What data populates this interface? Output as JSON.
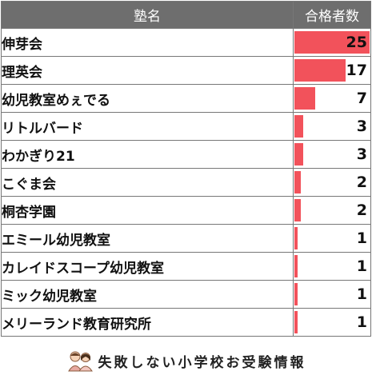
{
  "chart_data": {
    "type": "table",
    "headers": [
      "塾名",
      "合格者数"
    ],
    "categories": [
      "伸芽会",
      "理英会",
      "幼児教室めぇでる",
      "リトルバード",
      "わかぎり21",
      "こぐま会",
      "桐杏学園",
      "エミール幼児教室",
      "カレイドスコープ幼児教室",
      "ミック幼児教室",
      "メリーランド教育研究所"
    ],
    "values": [
      25,
      17,
      7,
      3,
      3,
      2,
      2,
      1,
      1,
      1,
      1
    ],
    "xlim": [
      0,
      25
    ]
  },
  "footer": {
    "text": "失敗しない小学校お受験情報",
    "logo_icon": "parents-illustration-icon"
  },
  "colors": {
    "header_bg": "#6e6e6e",
    "bar": "#f2525b",
    "border": "#777777"
  }
}
